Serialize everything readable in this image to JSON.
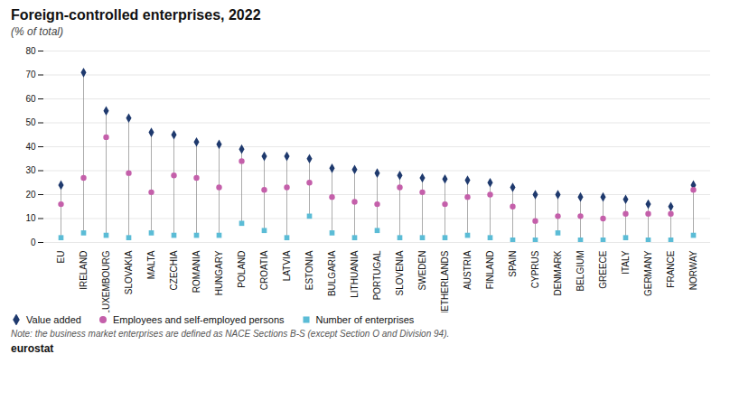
{
  "chart_data": {
    "type": "scatter",
    "title": "Foreign-controlled enterprises, 2022",
    "subtitle": "(% of total)",
    "note": "Note: the business market enterprises are defined as NACE Sections B-S (except Section O and Division 94).",
    "source": "eurostat",
    "categories": [
      "EU",
      "IRELAND",
      "LUXEMBOURG",
      "SLOVAKIA",
      "MALTA",
      "CZECHIA",
      "ROMANIA",
      "HUNGARY",
      "POLAND",
      "CROATIA",
      "LATVIA",
      "ESTONIA",
      "BULGARIA",
      "LITHUANIA",
      "PORTUGAL",
      "SLOVENIA",
      "SWEDEN",
      "NETHERLANDS",
      "AUSTRIA",
      "FINLAND",
      "SPAIN",
      "CYPRUS",
      "DENMARK",
      "BELGIUM",
      "GREECE",
      "ITALY",
      "GERMANY",
      "FRANCE",
      "NORWAY"
    ],
    "series": [
      {
        "name": "Value added",
        "color": "#1f3a6e",
        "marker": "diamond",
        "values": [
          24,
          71,
          55,
          52,
          46,
          45,
          42,
          41,
          39,
          36,
          36,
          35,
          31,
          30.5,
          29,
          28,
          27,
          26.5,
          26,
          25,
          23,
          20,
          20,
          19,
          19,
          18,
          16,
          15,
          24
        ]
      },
      {
        "name": "Employees and self-employed persons",
        "color": "#c45faa",
        "marker": "circle",
        "values": [
          16,
          27,
          44,
          29,
          21,
          28,
          27,
          23,
          34,
          22,
          23,
          25,
          19,
          17,
          16,
          23,
          21,
          16,
          19,
          20,
          15,
          9,
          11,
          11,
          10,
          12,
          12,
          12,
          22
        ]
      },
      {
        "name": "Number of enterprises",
        "color": "#5bbcd6",
        "marker": "square",
        "values": [
          2,
          4,
          3,
          2,
          4,
          3,
          3,
          3,
          8,
          5,
          2,
          11,
          4,
          2,
          5,
          2,
          2,
          2,
          3,
          2,
          1,
          1,
          4,
          1,
          1,
          2,
          1,
          1,
          3
        ]
      }
    ],
    "ylim": [
      0,
      80
    ],
    "yticks": [
      0,
      10,
      20,
      30,
      40,
      50,
      60,
      70,
      80
    ],
    "grid": true,
    "legend": "bottom"
  }
}
